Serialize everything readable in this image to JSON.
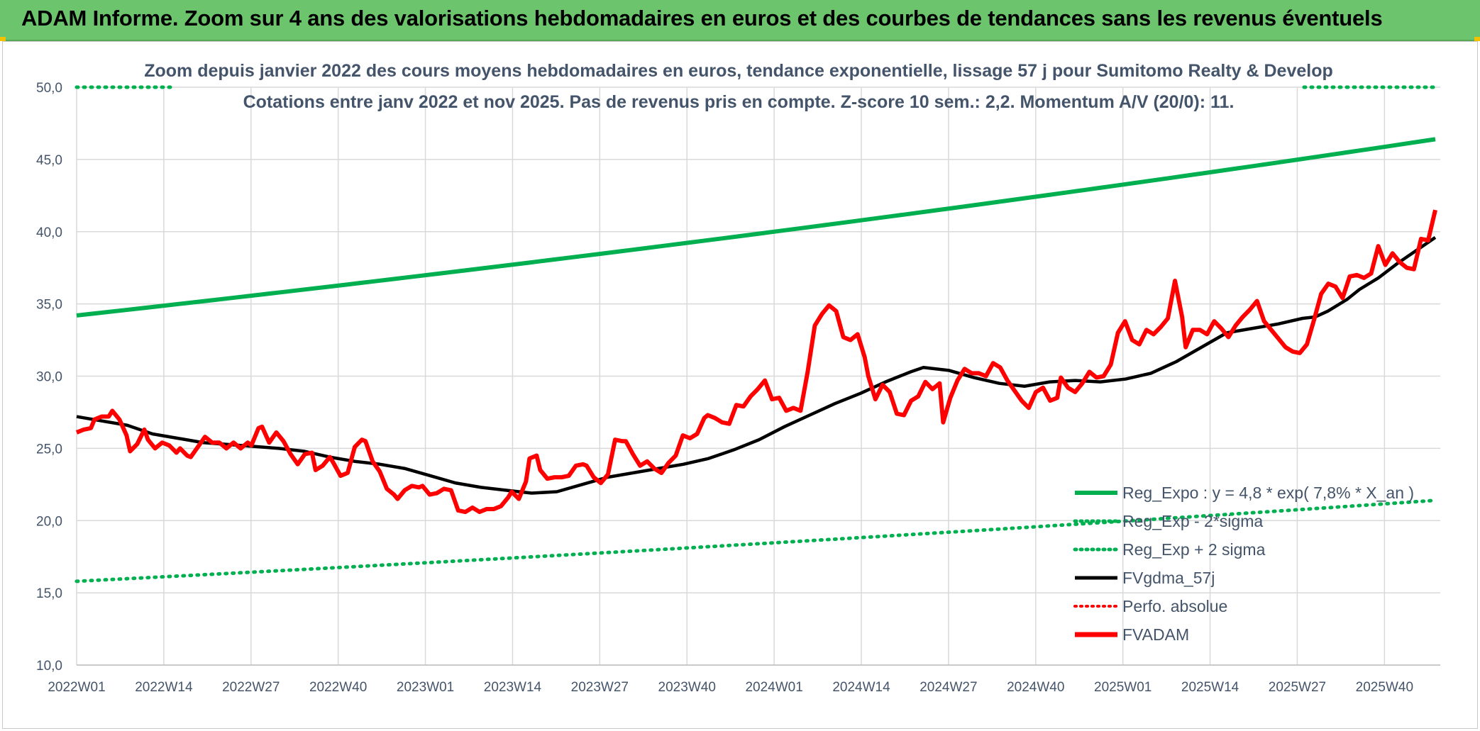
{
  "header": {
    "title": "ADAM Informe. Zoom sur 4 ans des valorisations hebdomadaires en euros et des courbes de tendances sans les revenus éventuels"
  },
  "chart_data": {
    "type": "line",
    "subtitle_line1": "Zoom depuis janvier 2022 des cours moyens hebdomadaires en euros, tendance exponentielle, lissage 57 j pour Sumitomo Realty & Develop",
    "subtitle_line2": "Cotations entre janv 2022 et nov 2025. Pas de revenus pris en compte. Z-score 10 sem.: 2,2. Momentum A/V (20/0): 11.",
    "ylim": [
      10,
      50
    ],
    "yticks": [
      "50,0",
      "45,0",
      "40,0",
      "35,0",
      "30,0",
      "25,0",
      "20,0",
      "15,0",
      "10,0"
    ],
    "xticks": [
      "2022W01",
      "2022W14",
      "2022W27",
      "2022W40",
      "2023W01",
      "2023W14",
      "2023W27",
      "2023W40",
      "2024W01",
      "2024W14",
      "2024W27",
      "2024W40",
      "2025W01",
      "2025W14",
      "2025W27",
      "2025W40"
    ],
    "weeks_total": 201,
    "colors": {
      "reg_expo": "#00b050",
      "fvgdma": "#000000",
      "fvadam": "#ff0000",
      "perfo": "#ff0000",
      "grid": "#d9d9d9"
    },
    "series": [
      {
        "name": "Reg_Expo : y = 4,8 * exp( 7,8% *  X_an )",
        "style": "solid-green",
        "start": 34.2,
        "end": 46.4
      },
      {
        "name": "Reg_Exp - 2*sigma",
        "style": "dotted-green",
        "start": 15.8,
        "end": 21.4
      },
      {
        "name": "Reg_Exp + 2 sigma",
        "style": "dotted-green",
        "value_visible": 50.0
      },
      {
        "name": "FVgdma_57j",
        "style": "solid-black",
        "points": [
          [
            0,
            27.2
          ],
          [
            4,
            26.9
          ],
          [
            8,
            26.6
          ],
          [
            12,
            26.0
          ],
          [
            16,
            25.7
          ],
          [
            20,
            25.4
          ],
          [
            26,
            25.2
          ],
          [
            32,
            25.0
          ],
          [
            36,
            24.8
          ],
          [
            40,
            24.4
          ],
          [
            44,
            24.1
          ],
          [
            48,
            23.9
          ],
          [
            52,
            23.6
          ],
          [
            56,
            23.1
          ],
          [
            60,
            22.6
          ],
          [
            64,
            22.3
          ],
          [
            68,
            22.1
          ],
          [
            72,
            21.9
          ],
          [
            76,
            22.0
          ],
          [
            80,
            22.5
          ],
          [
            84,
            23.0
          ],
          [
            88,
            23.3
          ],
          [
            92,
            23.6
          ],
          [
            96,
            23.9
          ],
          [
            100,
            24.3
          ],
          [
            104,
            24.9
          ],
          [
            108,
            25.6
          ],
          [
            112,
            26.5
          ],
          [
            116,
            27.3
          ],
          [
            120,
            28.1
          ],
          [
            124,
            28.8
          ],
          [
            128,
            29.6
          ],
          [
            132,
            30.3
          ],
          [
            134,
            30.6
          ],
          [
            138,
            30.4
          ],
          [
            142,
            29.9
          ],
          [
            146,
            29.5
          ],
          [
            150,
            29.3
          ],
          [
            154,
            29.6
          ],
          [
            158,
            29.7
          ],
          [
            162,
            29.6
          ],
          [
            166,
            29.8
          ],
          [
            170,
            30.2
          ],
          [
            174,
            31.0
          ],
          [
            178,
            32.0
          ],
          [
            182,
            33.0
          ],
          [
            186,
            33.3
          ],
          [
            190,
            33.6
          ],
          [
            194,
            34.0
          ],
          [
            196,
            34.1
          ],
          [
            198,
            34.5
          ],
          [
            201,
            35.3
          ],
          [
            203,
            36.0
          ],
          [
            206,
            36.8
          ],
          [
            209,
            37.8
          ],
          [
            212,
            38.7
          ],
          [
            215,
            39.6
          ]
        ]
      },
      {
        "name": "Perfo. absolue",
        "style": "dotted-red"
      },
      {
        "name": "FVADAM",
        "style": "solid-red",
        "points": [
          [
            0,
            26.1
          ],
          [
            2,
            26.3
          ],
          [
            4,
            26.4
          ],
          [
            5,
            27.0
          ],
          [
            7,
            27.2
          ],
          [
            9,
            27.2
          ],
          [
            10,
            27.6
          ],
          [
            12,
            27.0
          ],
          [
            14,
            25.9
          ],
          [
            15,
            24.8
          ],
          [
            17,
            25.3
          ],
          [
            19,
            26.3
          ],
          [
            20,
            25.6
          ],
          [
            22,
            25.0
          ],
          [
            24,
            25.4
          ],
          [
            26,
            25.2
          ],
          [
            28,
            24.7
          ],
          [
            29,
            25.0
          ],
          [
            31,
            24.5
          ],
          [
            32,
            24.4
          ],
          [
            34,
            25.1
          ],
          [
            36,
            25.8
          ],
          [
            38,
            25.4
          ],
          [
            40,
            25.4
          ],
          [
            42,
            25.0
          ],
          [
            44,
            25.4
          ],
          [
            46,
            25.0
          ],
          [
            48,
            25.4
          ],
          [
            49,
            25.2
          ],
          [
            51,
            26.4
          ],
          [
            52,
            26.5
          ],
          [
            54,
            25.4
          ],
          [
            56,
            26.1
          ],
          [
            58,
            25.5
          ],
          [
            60,
            24.6
          ],
          [
            62,
            23.9
          ],
          [
            64,
            24.6
          ],
          [
            66,
            24.7
          ],
          [
            67,
            23.5
          ],
          [
            69,
            23.8
          ],
          [
            71,
            24.4
          ],
          [
            72,
            24.0
          ],
          [
            74,
            23.1
          ],
          [
            76,
            23.3
          ],
          [
            78,
            25.1
          ],
          [
            80,
            25.6
          ],
          [
            81,
            25.5
          ],
          [
            83,
            24.1
          ],
          [
            85,
            23.4
          ],
          [
            87,
            22.2
          ],
          [
            89,
            21.8
          ],
          [
            90,
            21.5
          ],
          [
            92,
            22.1
          ],
          [
            94,
            22.4
          ],
          [
            96,
            22.3
          ],
          [
            97,
            22.4
          ],
          [
            99,
            21.8
          ],
          [
            101,
            21.9
          ],
          [
            103,
            22.2
          ],
          [
            105,
            22.1
          ],
          [
            107,
            20.7
          ],
          [
            109,
            20.6
          ],
          [
            111,
            20.9
          ],
          [
            113,
            20.6
          ],
          [
            115,
            20.8
          ],
          [
            117,
            20.8
          ],
          [
            119,
            21.0
          ],
          [
            121,
            21.6
          ],
          [
            122,
            22.0
          ],
          [
            124,
            21.5
          ],
          [
            126,
            22.7
          ],
          [
            127,
            24.3
          ],
          [
            129,
            24.5
          ],
          [
            130,
            23.5
          ],
          [
            132,
            22.9
          ],
          [
            134,
            23.0
          ],
          [
            136,
            23.0
          ],
          [
            138,
            23.1
          ],
          [
            140,
            23.8
          ],
          [
            142,
            23.9
          ],
          [
            143,
            23.8
          ],
          [
            145,
            23.0
          ],
          [
            147,
            22.6
          ],
          [
            149,
            23.2
          ],
          [
            151,
            25.6
          ],
          [
            153,
            25.5
          ],
          [
            154,
            25.5
          ],
          [
            156,
            24.6
          ],
          [
            158,
            23.8
          ],
          [
            160,
            24.1
          ],
          [
            162,
            23.6
          ],
          [
            164,
            23.3
          ],
          [
            166,
            24.0
          ],
          [
            168,
            24.5
          ],
          [
            170,
            25.9
          ],
          [
            172,
            25.7
          ],
          [
            174,
            26.0
          ],
          [
            176,
            27.1
          ],
          [
            177,
            27.3
          ],
          [
            179,
            27.1
          ],
          [
            181,
            26.8
          ],
          [
            183,
            26.7
          ],
          [
            185,
            28.0
          ],
          [
            187,
            27.9
          ],
          [
            189,
            28.6
          ],
          [
            191,
            29.1
          ],
          [
            193,
            29.7
          ],
          [
            195,
            28.4
          ],
          [
            197,
            28.5
          ],
          [
            199,
            27.6
          ],
          [
            201,
            27.8
          ],
          [
            203,
            27.6
          ],
          [
            205,
            30.3
          ],
          [
            207,
            33.5
          ],
          [
            209,
            34.3
          ],
          [
            211,
            34.9
          ],
          [
            213,
            34.5
          ],
          [
            215,
            32.7
          ],
          [
            217,
            32.5
          ],
          [
            219,
            32.9
          ],
          [
            221,
            31.3
          ],
          [
            222,
            30.0
          ],
          [
            224,
            28.4
          ],
          [
            226,
            29.4
          ],
          [
            228,
            28.9
          ],
          [
            230,
            27.4
          ],
          [
            232,
            27.3
          ],
          [
            234,
            28.3
          ],
          [
            236,
            28.6
          ],
          [
            238,
            29.6
          ],
          [
            240,
            29.1
          ],
          [
            242,
            29.5
          ],
          [
            243,
            26.8
          ],
          [
            245,
            28.5
          ],
          [
            247,
            29.7
          ],
          [
            249,
            30.5
          ],
          [
            251,
            30.2
          ],
          [
            253,
            30.2
          ],
          [
            255,
            30.0
          ],
          [
            257,
            30.9
          ],
          [
            259,
            30.6
          ],
          [
            261,
            29.7
          ],
          [
            263,
            29.0
          ],
          [
            265,
            28.3
          ],
          [
            267,
            27.8
          ],
          [
            269,
            28.9
          ],
          [
            271,
            29.2
          ],
          [
            273,
            28.3
          ],
          [
            275,
            28.5
          ],
          [
            276,
            29.9
          ],
          [
            278,
            29.2
          ],
          [
            280,
            28.9
          ],
          [
            282,
            29.5
          ],
          [
            284,
            30.3
          ],
          [
            286,
            29.9
          ],
          [
            288,
            30.0
          ],
          [
            290,
            30.8
          ],
          [
            292,
            33.0
          ],
          [
            294,
            33.8
          ],
          [
            296,
            32.5
          ],
          [
            298,
            32.2
          ],
          [
            300,
            33.2
          ],
          [
            302,
            32.9
          ],
          [
            304,
            33.4
          ],
          [
            306,
            34.0
          ],
          [
            308,
            36.6
          ],
          [
            310,
            34.1
          ],
          [
            311,
            32.0
          ],
          [
            313,
            33.2
          ],
          [
            315,
            33.2
          ],
          [
            317,
            32.9
          ],
          [
            319,
            33.8
          ],
          [
            321,
            33.3
          ],
          [
            323,
            32.7
          ],
          [
            325,
            33.5
          ],
          [
            327,
            34.1
          ],
          [
            329,
            34.6
          ],
          [
            331,
            35.2
          ],
          [
            333,
            33.8
          ],
          [
            335,
            33.2
          ],
          [
            337,
            32.6
          ],
          [
            339,
            32.0
          ],
          [
            341,
            31.7
          ],
          [
            343,
            31.6
          ],
          [
            345,
            32.2
          ],
          [
            347,
            33.9
          ],
          [
            349,
            35.7
          ],
          [
            351,
            36.4
          ],
          [
            353,
            36.2
          ],
          [
            355,
            35.4
          ],
          [
            357,
            36.9
          ],
          [
            359,
            37.0
          ],
          [
            361,
            36.8
          ],
          [
            363,
            37.1
          ],
          [
            365,
            39.0
          ],
          [
            367,
            37.7
          ],
          [
            369,
            38.5
          ],
          [
            371,
            37.9
          ],
          [
            373,
            37.5
          ],
          [
            375,
            37.4
          ],
          [
            377,
            39.5
          ],
          [
            379,
            39.4
          ],
          [
            381,
            41.5
          ]
        ]
      }
    ]
  }
}
